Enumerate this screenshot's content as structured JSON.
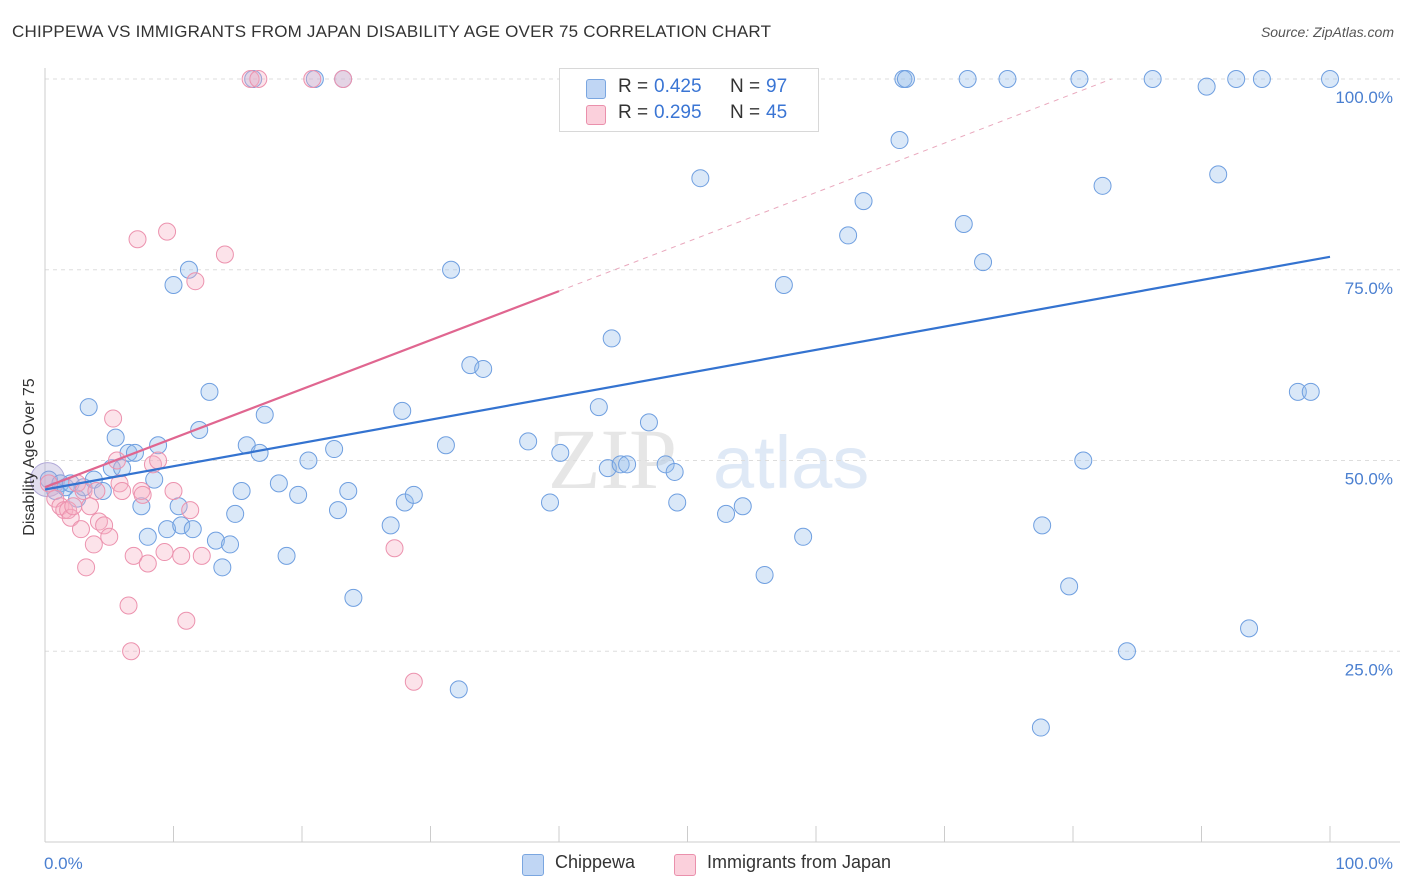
{
  "title": "CHIPPEWA VS IMMIGRANTS FROM JAPAN DISABILITY AGE OVER 75 CORRELATION CHART",
  "source": "Source: ZipAtlas.com",
  "watermark": {
    "zip": "ZIP",
    "atlas": "atlas"
  },
  "legend": {
    "rows": [
      {
        "r_label": "R =",
        "r_value": "0.425",
        "n_label": "N =",
        "n_value": "97",
        "color": "#a8c8f0",
        "border": "#7aa6e0"
      },
      {
        "r_label": "R =",
        "r_value": "0.295",
        "n_label": "N =",
        "n_value": "45",
        "color": "#f8c0d0",
        "border": "#ea90ac"
      }
    ]
  },
  "bottom_legend": [
    "Chippewa",
    "Immigrants from Japan"
  ],
  "colors": {
    "blue_fill": "rgba(150,188,236,0.35)",
    "blue_stroke": "#6f9fe0",
    "blue_line": "#3473d0",
    "pink_fill": "rgba(246,176,196,0.35)",
    "pink_stroke": "#ec92ae",
    "pink_line": "#e06690",
    "grid": "#dddddd",
    "tick_text": "#4a7fd0"
  },
  "chart_data": {
    "type": "scatter",
    "title": "CHIPPEWA VS IMMIGRANTS FROM JAPAN DISABILITY AGE OVER 75 CORRELATION CHART",
    "xlabel": "",
    "ylabel": "Disability Age Over 75",
    "xlim": [
      0,
      100
    ],
    "ylim": [
      0,
      102
    ],
    "x_tick_labels": [
      "0.0%",
      "100.0%"
    ],
    "y_ticks": [
      25,
      50,
      75,
      100
    ],
    "y_tick_labels": [
      "25.0%",
      "50.0%",
      "75.0%",
      "100.0%"
    ],
    "grid": "horizontal dashed",
    "series": [
      {
        "name": "Chippewa",
        "r": 0.425,
        "n": 97,
        "trend": {
          "x0": 0,
          "y0": 46.2,
          "x1": 100,
          "y1": 76.7
        },
        "points": [
          [
            0.3,
            47.5
          ],
          [
            0.8,
            46.0
          ],
          [
            1.2,
            47.0
          ],
          [
            1.6,
            46.5
          ],
          [
            2.0,
            47.0
          ],
          [
            2.5,
            45.0
          ],
          [
            3.0,
            46.5
          ],
          [
            3.4,
            57.0
          ],
          [
            3.8,
            47.5
          ],
          [
            4.5,
            46.0
          ],
          [
            5.2,
            49.0
          ],
          [
            5.5,
            53.0
          ],
          [
            6.0,
            49.0
          ],
          [
            6.5,
            51.0
          ],
          [
            7.0,
            51.0
          ],
          [
            7.5,
            44.0
          ],
          [
            8.0,
            40.0
          ],
          [
            8.5,
            47.5
          ],
          [
            8.8,
            52.0
          ],
          [
            9.5,
            41.0
          ],
          [
            10.0,
            73.0
          ],
          [
            10.4,
            44.0
          ],
          [
            10.6,
            41.5
          ],
          [
            11.2,
            75.0
          ],
          [
            11.5,
            41.0
          ],
          [
            12.0,
            54.0
          ],
          [
            12.8,
            59.0
          ],
          [
            13.3,
            39.5
          ],
          [
            13.8,
            36.0
          ],
          [
            14.4,
            39.0
          ],
          [
            14.8,
            43.0
          ],
          [
            15.3,
            46.0
          ],
          [
            15.7,
            52.0
          ],
          [
            16.2,
            100.0
          ],
          [
            16.7,
            51.0
          ],
          [
            17.1,
            56.0
          ],
          [
            18.2,
            47.0
          ],
          [
            18.8,
            37.5
          ],
          [
            19.7,
            45.5
          ],
          [
            20.5,
            50.0
          ],
          [
            21.0,
            100.0
          ],
          [
            22.5,
            51.5
          ],
          [
            22.8,
            43.5
          ],
          [
            23.2,
            100.0
          ],
          [
            23.6,
            46.0
          ],
          [
            24.0,
            32.0
          ],
          [
            26.9,
            41.5
          ],
          [
            27.8,
            56.5
          ],
          [
            28.0,
            44.5
          ],
          [
            28.7,
            45.5
          ],
          [
            31.2,
            52.0
          ],
          [
            31.6,
            75.0
          ],
          [
            32.2,
            20.0
          ],
          [
            33.1,
            62.5
          ],
          [
            34.1,
            62.0
          ],
          [
            37.6,
            52.5
          ],
          [
            39.3,
            44.5
          ],
          [
            40.1,
            51.0
          ],
          [
            43.1,
            57.0
          ],
          [
            43.8,
            49.0
          ],
          [
            44.1,
            66.0
          ],
          [
            44.8,
            49.5
          ],
          [
            45.3,
            49.5
          ],
          [
            47.0,
            55.0
          ],
          [
            48.3,
            49.5
          ],
          [
            49.0,
            48.5
          ],
          [
            49.2,
            44.5
          ],
          [
            51.0,
            87.0
          ],
          [
            53.0,
            43.0
          ],
          [
            54.3,
            44.0
          ],
          [
            56.0,
            35.0
          ],
          [
            57.5,
            73.0
          ],
          [
            59.0,
            40.0
          ],
          [
            62.5,
            79.5
          ],
          [
            63.7,
            84.0
          ],
          [
            66.5,
            92.0
          ],
          [
            66.8,
            100.0
          ],
          [
            67.0,
            100.0
          ],
          [
            71.5,
            81.0
          ],
          [
            71.8,
            100.0
          ],
          [
            73.0,
            76.0
          ],
          [
            74.9,
            100.0
          ],
          [
            77.5,
            15.0
          ],
          [
            77.6,
            41.5
          ],
          [
            79.7,
            33.5
          ],
          [
            80.5,
            100.0
          ],
          [
            80.8,
            50.0
          ],
          [
            82.3,
            86.0
          ],
          [
            84.2,
            25.0
          ],
          [
            86.2,
            100.0
          ],
          [
            90.4,
            99.0
          ],
          [
            91.3,
            87.5
          ],
          [
            92.7,
            100.0
          ],
          [
            93.7,
            28.0
          ],
          [
            94.7,
            100.0
          ],
          [
            97.5,
            59.0
          ],
          [
            98.5,
            59.0
          ],
          [
            100.0,
            100.0
          ]
        ]
      },
      {
        "name": "Immigrants from Japan",
        "r": 0.295,
        "n": 45,
        "trend": {
          "x0": 0,
          "y0": 46.5,
          "x1": 40,
          "y1": 72.2,
          "dashed_to": {
            "x": 83,
            "y": 100
          }
        },
        "points": [
          [
            0.3,
            47.0
          ],
          [
            0.8,
            45.0
          ],
          [
            1.2,
            44.0
          ],
          [
            1.5,
            43.5
          ],
          [
            1.8,
            43.5
          ],
          [
            2.0,
            42.5
          ],
          [
            2.2,
            44.0
          ],
          [
            2.5,
            47.0
          ],
          [
            2.8,
            41.0
          ],
          [
            3.0,
            46.0
          ],
          [
            3.2,
            36.0
          ],
          [
            3.5,
            44.0
          ],
          [
            3.8,
            39.0
          ],
          [
            4.0,
            46.0
          ],
          [
            4.2,
            42.0
          ],
          [
            4.6,
            41.5
          ],
          [
            5.0,
            40.0
          ],
          [
            5.3,
            55.5
          ],
          [
            5.6,
            50.0
          ],
          [
            5.8,
            47.0
          ],
          [
            6.0,
            46.0
          ],
          [
            6.5,
            31.0
          ],
          [
            6.7,
            25.0
          ],
          [
            6.9,
            37.5
          ],
          [
            7.2,
            79.0
          ],
          [
            7.5,
            46.0
          ],
          [
            7.6,
            45.5
          ],
          [
            8.0,
            36.5
          ],
          [
            8.4,
            49.5
          ],
          [
            8.8,
            50.0
          ],
          [
            9.3,
            38.0
          ],
          [
            9.5,
            80.0
          ],
          [
            10.0,
            46.0
          ],
          [
            10.6,
            37.5
          ],
          [
            11.0,
            29.0
          ],
          [
            11.3,
            43.5
          ],
          [
            11.7,
            73.5
          ],
          [
            12.2,
            37.5
          ],
          [
            14.0,
            77.0
          ],
          [
            16.0,
            100.0
          ],
          [
            16.6,
            100.0
          ],
          [
            20.8,
            100.0
          ],
          [
            23.2,
            100.0
          ],
          [
            27.2,
            38.5
          ],
          [
            28.7,
            21.0
          ]
        ]
      }
    ]
  }
}
